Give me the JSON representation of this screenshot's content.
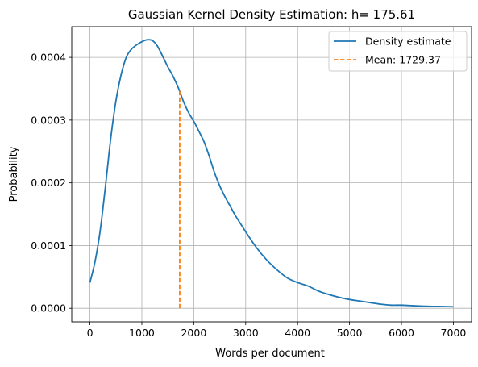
{
  "chart_data": {
    "type": "line",
    "title": "Gaussian Kernel Density Estimation: h= 175.61",
    "xlabel": "Words per document",
    "ylabel": "Probability",
    "xlim": [
      -350,
      7350
    ],
    "ylim": [
      -2.16e-05,
      0.000449
    ],
    "xticks": [
      0,
      1000,
      2000,
      3000,
      4000,
      5000,
      6000,
      7000
    ],
    "xtick_labels": [
      "0",
      "1000",
      "2000",
      "3000",
      "4000",
      "5000",
      "6000",
      "7000"
    ],
    "yticks": [
      0.0,
      0.0001,
      0.0002,
      0.0003,
      0.0004
    ],
    "ytick_labels": [
      "0.0000",
      "0.0001",
      "0.0002",
      "0.0003",
      "0.0004"
    ],
    "grid": true,
    "legend_position": "top-right",
    "series": [
      {
        "name": "Density estimate",
        "color": "#1f77b4",
        "style": "solid",
        "x": [
          0,
          100,
          200,
          300,
          400,
          500,
          600,
          700,
          800,
          900,
          1000,
          1100,
          1200,
          1300,
          1400,
          1500,
          1600,
          1700,
          1800,
          1900,
          2000,
          2100,
          2200,
          2300,
          2400,
          2500,
          2600,
          2700,
          2800,
          2900,
          3000,
          3200,
          3400,
          3600,
          3800,
          4000,
          4200,
          4400,
          4600,
          4800,
          5000,
          5200,
          5400,
          5600,
          5800,
          6000,
          6200,
          6400,
          6600,
          6800,
          7000
        ],
        "y": [
          4.1e-05,
          7.5e-05,
          0.000125,
          0.000195,
          0.00027,
          0.00033,
          0.000372,
          0.0004,
          0.000413,
          0.00042,
          0.000425,
          0.000428,
          0.000427,
          0.000418,
          0.000402,
          0.000385,
          0.00037,
          0.000352,
          0.00033,
          0.000312,
          0.000298,
          0.000282,
          0.000265,
          0.000242,
          0.000216,
          0.000195,
          0.000178,
          0.000163,
          0.000148,
          0.000135,
          0.000122,
          9.75e-05,
          7.75e-05,
          6.15e-05,
          4.85e-05,
          4.1e-05,
          3.55e-05,
          2.75e-05,
          2.2e-05,
          1.75e-05,
          1.4e-05,
          1.15e-05,
          9e-06,
          6.5e-06,
          5e-06,
          5e-06,
          4.2e-06,
          3.5e-06,
          3e-06,
          2.8e-06,
          2.5e-06
        ]
      },
      {
        "name": "Mean: 1729.37",
        "color": "#ff7f0e",
        "style": "dashed",
        "x": [
          1729.37,
          1729.37
        ],
        "y": [
          0.0,
          0.000348
        ]
      }
    ]
  }
}
